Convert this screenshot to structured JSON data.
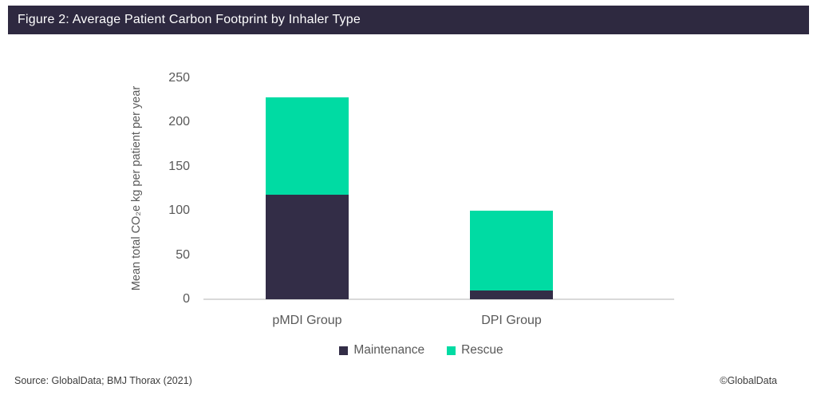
{
  "header": {
    "title": "Figure 2: Average Patient Carbon Footprint by Inhaler Type"
  },
  "chart_data": {
    "type": "bar",
    "stacked": true,
    "title": "Figure 2: Average Patient Carbon Footprint by Inhaler Type",
    "categories": [
      "pMDI Group",
      "DPI Group"
    ],
    "series": [
      {
        "name": "Maintenance",
        "color": "#332D47",
        "values": [
          118,
          10
        ]
      },
      {
        "name": "Rescue",
        "color": "#00DBA3",
        "values": [
          110,
          90
        ]
      }
    ],
    "totals": [
      228,
      100
    ],
    "xlabel": "",
    "ylabel": "Mean total CO₂e kg per patient per year",
    "ylim": [
      0,
      250
    ],
    "yticks": [
      0,
      50,
      100,
      150,
      200,
      250
    ],
    "grid": false,
    "legend_position": "bottom"
  },
  "footer": {
    "source": "Source: GlobalData; BMJ Thorax (2021)",
    "copyright": "©GlobalData"
  },
  "colors": {
    "header_bg": "#2E2940",
    "axis_line": "#D9D9D9",
    "axis_text": "#595959",
    "footer_text": "#3C3C3C",
    "maintenance": "#332D47",
    "rescue": "#00DBA3"
  }
}
